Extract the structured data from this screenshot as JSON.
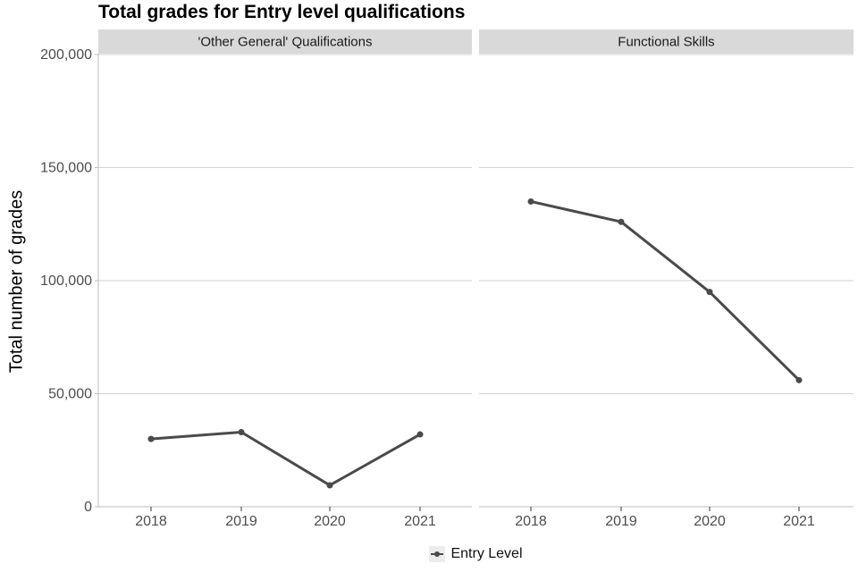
{
  "title": "Total grades for Entry level qualifications",
  "chart_data": {
    "type": "line",
    "title": "Total grades for Entry level qualifications",
    "xlabel": "",
    "ylabel": "Total number of grades",
    "x": [
      "2018",
      "2019",
      "2020",
      "2021"
    ],
    "ylim": [
      0,
      200000
    ],
    "yticks": [
      0,
      50000,
      100000,
      150000,
      200000
    ],
    "ytick_labels": [
      "0",
      "50,000",
      "100,000",
      "150,000",
      "200,000"
    ],
    "grid": "horizontal-major-only",
    "facets": [
      {
        "label": "'Other General' Qualifications",
        "series": [
          {
            "name": "Entry Level",
            "values": [
              30000,
              33000,
              9500,
              32000
            ]
          }
        ]
      },
      {
        "label": "Functional Skills",
        "series": [
          {
            "name": "Entry Level",
            "values": [
              135000,
              126000,
              95000,
              56000
            ]
          }
        ]
      }
    ],
    "legend": {
      "position": "bottom-center",
      "entries": [
        {
          "label": "Entry Level",
          "marker": "point-on-line",
          "color": "#4a4a4a"
        }
      ]
    },
    "style": {
      "line_color": "#4a4a4a",
      "point_color": "#4a4a4a",
      "grid_color": "#d2d2d2",
      "axis_line_color": "#bdbdbd",
      "x_tick_color": "#333333",
      "tick_label_color": "#4d4d4d",
      "strip_bg": "#d9d9d9",
      "strip_text_color": "#1a1a1a",
      "legend_key_bg": "#ececec",
      "panel_bg": "#ffffff"
    }
  }
}
